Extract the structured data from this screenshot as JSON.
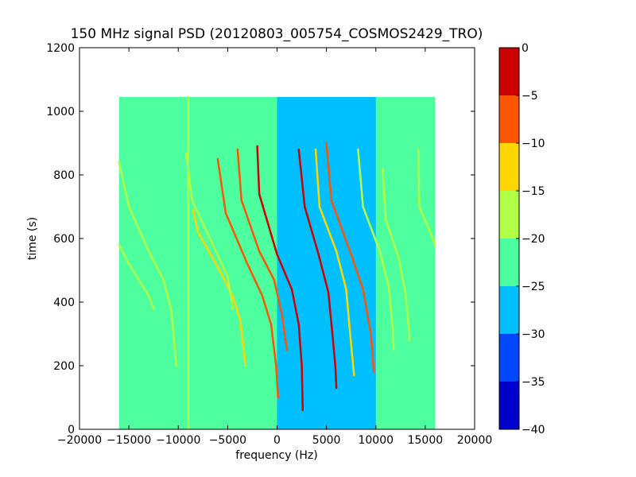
{
  "chart_data": {
    "type": "heatmap",
    "title": "150 MHz signal PSD (20120803_005754_COSMOS2429_TRO)",
    "xlabel": "frequency (Hz)",
    "ylabel": "time (s)",
    "xlim": [
      -20000,
      20000
    ],
    "ylim": [
      0,
      1200
    ],
    "xticks": [
      -20000,
      -15000,
      -10000,
      -5000,
      0,
      5000,
      10000,
      15000,
      20000
    ],
    "xtick_labels": [
      "−20000",
      "−15000",
      "−10000",
      "−5000",
      "0",
      "5000",
      "10000",
      "15000",
      "20000"
    ],
    "yticks": [
      0,
      200,
      400,
      600,
      800,
      1000,
      1200
    ],
    "ytick_labels": [
      "0",
      "200",
      "400",
      "600",
      "800",
      "1000",
      "1200"
    ],
    "data_extent": {
      "freq": [
        -16000,
        16000
      ],
      "time": [
        0,
        1045
      ]
    },
    "background_level": -22.5,
    "low_level_band": {
      "freq": [
        0,
        10000
      ],
      "level": -27.5
    },
    "signal_traces": [
      {
        "points": [
          [
            -16000,
            840
          ],
          [
            -15000,
            700
          ],
          [
            -13000,
            560
          ],
          [
            -11500,
            470
          ],
          [
            -10700,
            370
          ],
          [
            -10200,
            200
          ]
        ],
        "level": -17.5
      },
      {
        "points": [
          [
            -16000,
            580
          ],
          [
            -15000,
            520
          ],
          [
            -14000,
            470
          ],
          [
            -13000,
            420
          ],
          [
            -12500,
            380
          ]
        ],
        "level": -17.5
      },
      {
        "points": [
          [
            -9000,
            1045
          ],
          [
            -9000,
            0
          ]
        ],
        "level": -17.5
      },
      {
        "points": [
          [
            -8500,
            690
          ],
          [
            -8000,
            620
          ],
          [
            -6000,
            510
          ],
          [
            -4500,
            420
          ],
          [
            -3700,
            340
          ],
          [
            -3200,
            200
          ]
        ],
        "level": -12.5
      },
      {
        "points": [
          [
            -6000,
            850
          ],
          [
            -5200,
            680
          ],
          [
            -3000,
            520
          ],
          [
            -1500,
            420
          ],
          [
            -600,
            330
          ],
          [
            -100,
            200
          ],
          [
            100,
            100
          ]
        ],
        "level": -7.5
      },
      {
        "points": [
          [
            -2000,
            890
          ],
          [
            -1800,
            740
          ],
          [
            0,
            550
          ],
          [
            1500,
            440
          ],
          [
            2200,
            330
          ],
          [
            2500,
            200
          ],
          [
            2600,
            60
          ]
        ],
        "level": -2.5
      },
      {
        "points": [
          [
            -4000,
            880
          ],
          [
            -3600,
            720
          ],
          [
            -1800,
            560
          ],
          [
            -300,
            470
          ],
          [
            500,
            360
          ],
          [
            1000,
            250
          ]
        ],
        "level": -7.5
      },
      {
        "points": [
          [
            -9200,
            870
          ],
          [
            -8600,
            720
          ],
          [
            -6500,
            580
          ],
          [
            -5000,
            480
          ],
          [
            -4500,
            380
          ]
        ],
        "level": -17.5
      },
      {
        "points": [
          [
            2200,
            880
          ],
          [
            2800,
            700
          ],
          [
            4200,
            550
          ],
          [
            5200,
            430
          ],
          [
            5600,
            300
          ],
          [
            5900,
            200
          ],
          [
            6000,
            130
          ]
        ],
        "level": -2.5
      },
      {
        "points": [
          [
            5000,
            900
          ],
          [
            5500,
            720
          ],
          [
            7500,
            550
          ],
          [
            8700,
            440
          ],
          [
            9500,
            300
          ],
          [
            9800,
            180
          ]
        ],
        "level": -7.5
      },
      {
        "points": [
          [
            3900,
            880
          ],
          [
            4300,
            700
          ],
          [
            6000,
            560
          ],
          [
            7000,
            440
          ],
          [
            7400,
            300
          ],
          [
            7800,
            170
          ]
        ],
        "level": -12.5
      },
      {
        "points": [
          [
            8200,
            880
          ],
          [
            8700,
            700
          ],
          [
            10400,
            560
          ],
          [
            11300,
            450
          ],
          [
            11700,
            320
          ],
          [
            11800,
            250
          ]
        ],
        "level": -17.5
      },
      {
        "points": [
          [
            10700,
            820
          ],
          [
            11000,
            660
          ],
          [
            12300,
            540
          ],
          [
            13000,
            430
          ],
          [
            13300,
            330
          ],
          [
            13400,
            280
          ]
        ],
        "level": -17.5
      },
      {
        "points": [
          [
            14300,
            880
          ],
          [
            14400,
            700
          ],
          [
            15500,
            620
          ],
          [
            16000,
            580
          ]
        ],
        "level": -17.5
      }
    ],
    "colorbar": {
      "min": -40,
      "max": 0,
      "ticks": [
        0,
        -5,
        -10,
        -15,
        -20,
        -25,
        -30,
        -35,
        -40
      ],
      "tick_labels": [
        "0",
        "−5",
        "−10",
        "−15",
        "−20",
        "−25",
        "−30",
        "−35",
        "−40"
      ],
      "bands": [
        {
          "from": -40,
          "to": -35,
          "color": "#0000cc"
        },
        {
          "from": -35,
          "to": -30,
          "color": "#0047ff"
        },
        {
          "from": -30,
          "to": -25,
          "color": "#00bfff"
        },
        {
          "from": -25,
          "to": -20,
          "color": "#4dff9f"
        },
        {
          "from": -20,
          "to": -15,
          "color": "#b2ff47"
        },
        {
          "from": -15,
          "to": -10,
          "color": "#ffd700"
        },
        {
          "from": -10,
          "to": -5,
          "color": "#ff5500"
        },
        {
          "from": -5,
          "to": 0,
          "color": "#cc0000"
        }
      ]
    }
  }
}
